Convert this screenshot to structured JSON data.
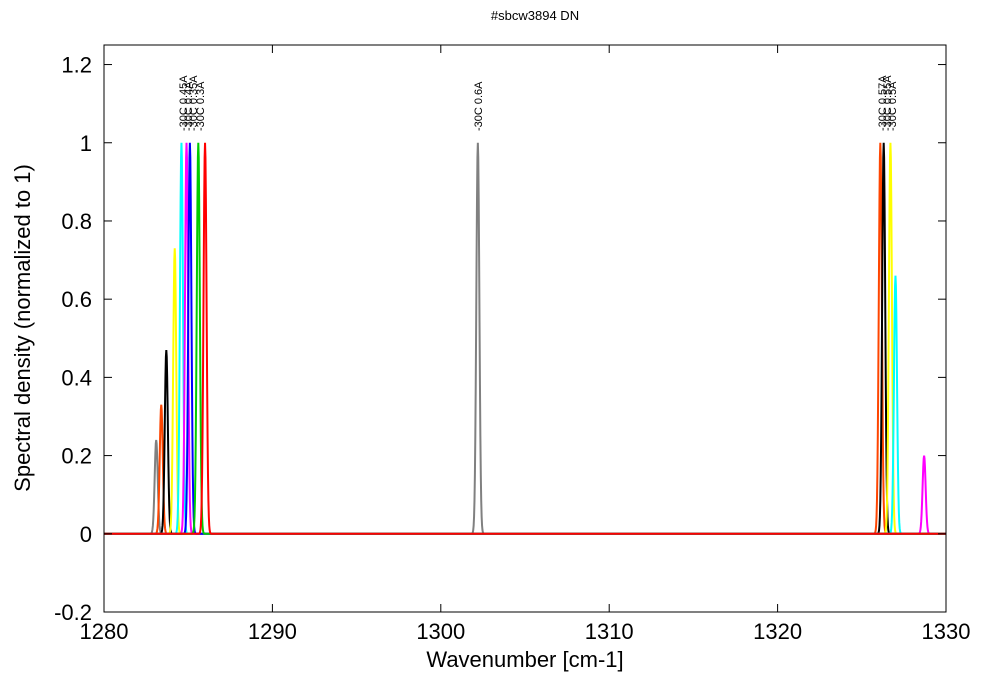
{
  "chart_data": {
    "type": "line",
    "title": "#sbcw3894 DN",
    "xlabel": "Wavenumber [cm-1]",
    "ylabel": "Spectral density (normalized to 1)",
    "xlim": [
      1280,
      1330
    ],
    "ylim": [
      -0.2,
      1.25
    ],
    "xticks": [
      "1280",
      "1290",
      "1300",
      "1310",
      "1320",
      "1330"
    ],
    "yticks": [
      "-0.2",
      "0",
      "0.2",
      "0.4",
      "0.6",
      "0.8",
      "1",
      "1.2"
    ],
    "grid": false,
    "series": [
      {
        "color": "#808080",
        "peaks": [
          [
            1283.1,
            0.24
          ],
          [
            1302.2,
            1.0
          ]
        ]
      },
      {
        "color": "#ff4500",
        "peaks": [
          [
            1283.4,
            0.33
          ],
          [
            1326.1,
            1.0
          ]
        ]
      },
      {
        "color": "#000000",
        "peaks": [
          [
            1283.7,
            0.47
          ],
          [
            1326.3,
            1.0
          ]
        ]
      },
      {
        "color": "#ffff00",
        "peaks": [
          [
            1284.2,
            0.73
          ],
          [
            1326.7,
            1.0
          ]
        ]
      },
      {
        "color": "#00ffff",
        "peaks": [
          [
            1284.6,
            1.0
          ],
          [
            1327.0,
            0.66
          ]
        ]
      },
      {
        "color": "#ff00ff",
        "peaks": [
          [
            1284.9,
            1.0
          ],
          [
            1328.7,
            0.2
          ]
        ]
      },
      {
        "color": "#0000ff",
        "peaks": [
          [
            1285.1,
            1.0
          ]
        ]
      },
      {
        "color": "#00cc00",
        "peaks": [
          [
            1285.6,
            1.0
          ]
        ]
      },
      {
        "color": "#ff0000",
        "peaks": [
          [
            1286.0,
            1.0
          ]
        ]
      }
    ],
    "peak_labels": [
      {
        "text": "-30C 0.45A",
        "x": 1284.7
      },
      {
        "text": "-30C 0.4A",
        "x": 1285.0
      },
      {
        "text": "-30C 0.35A",
        "x": 1285.3
      },
      {
        "text": "-30C 0.3A",
        "x": 1285.7
      },
      {
        "text": "-30C 0.6A",
        "x": 1302.2
      },
      {
        "text": "-30C 0.57A",
        "x": 1326.2
      },
      {
        "text": "-30C 0.55A",
        "x": 1326.5
      },
      {
        "text": "-30C 0.5A",
        "x": 1326.8
      }
    ]
  }
}
